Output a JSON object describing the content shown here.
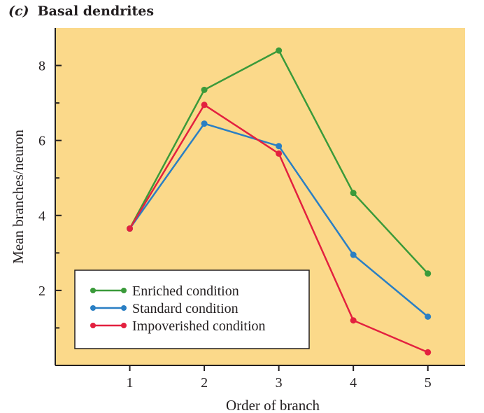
{
  "chart_data": {
    "type": "line",
    "title_prefix": "(c)",
    "title": "Basal dendrites",
    "xlabel": "Order of branch",
    "ylabel": "Mean branches/neuron",
    "x": [
      1,
      2,
      3,
      4,
      5
    ],
    "x_tick_labels": [
      "1",
      "2",
      "3",
      "4",
      "5"
    ],
    "y_tick_values": [
      2,
      4,
      6,
      8
    ],
    "y_tick_labels": [
      "2",
      "4",
      "6",
      "8"
    ],
    "xlim": [
      0,
      5.5
    ],
    "ylim": [
      0,
      9
    ],
    "grid": false,
    "legend_position": "bottom-left",
    "background_color": "#fbd98a",
    "series": [
      {
        "name": "Enriched condition",
        "color": "#3a9a3a",
        "values": [
          3.65,
          7.35,
          8.4,
          4.6,
          2.45
        ]
      },
      {
        "name": "Standard condition",
        "color": "#2a7fc4",
        "values": [
          3.65,
          6.45,
          5.85,
          2.95,
          1.3
        ]
      },
      {
        "name": "Impoverished condition",
        "color": "#e3203f",
        "values": [
          3.65,
          6.95,
          5.65,
          1.2,
          0.35
        ]
      }
    ]
  }
}
